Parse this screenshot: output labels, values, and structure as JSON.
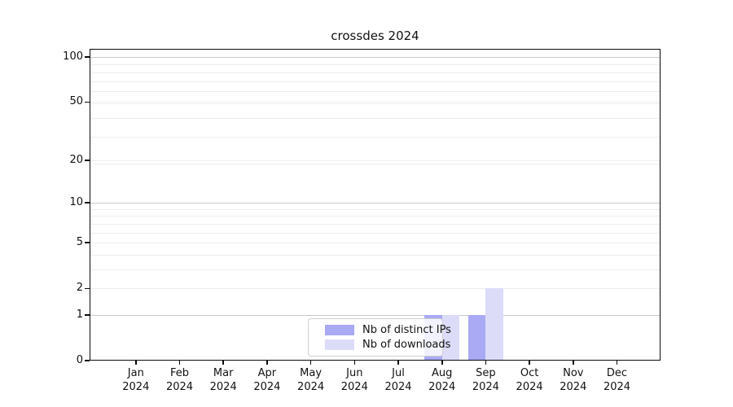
{
  "chart": {
    "title": "crossdes 2024",
    "year_label": "2024"
  },
  "chart_data": {
    "type": "bar",
    "title": "crossdes 2024",
    "categories": [
      "Jan 2024",
      "Feb 2024",
      "Mar 2024",
      "Apr 2024",
      "May 2024",
      "Jun 2024",
      "Jul 2024",
      "Aug 2024",
      "Sep 2024",
      "Oct 2024",
      "Nov 2024",
      "Dec 2024"
    ],
    "month_labels": [
      "Jan",
      "Feb",
      "Mar",
      "Apr",
      "May",
      "Jun",
      "Jul",
      "Aug",
      "Sep",
      "Oct",
      "Nov",
      "Dec"
    ],
    "series": [
      {
        "name": "Nb of distinct IPs",
        "color": "#a9a9f4",
        "values": [
          0,
          0,
          0,
          0,
          0,
          0,
          0,
          1,
          1,
          0,
          0,
          0
        ]
      },
      {
        "name": "Nb of downloads",
        "color": "#dcdcf8",
        "values": [
          0,
          0,
          0,
          0,
          0,
          0,
          0,
          1,
          2,
          0,
          0,
          0
        ]
      }
    ],
    "xlabel": "",
    "ylabel": "",
    "yscale": "log1p",
    "ylim": [
      0,
      113
    ],
    "y_major_ticks": [
      0,
      1,
      2,
      5,
      10,
      20,
      50,
      100
    ],
    "grid": true,
    "gridlines_dark": [
      1,
      10,
      100
    ],
    "gridlines_light": [
      2,
      3,
      4,
      5,
      6,
      7,
      8,
      9,
      19,
      20,
      29,
      39,
      49,
      50,
      59,
      69,
      79,
      89
    ],
    "legend_position": "lower center",
    "colors": {
      "grid_dark": "#c8c8c8",
      "grid_light": "#ededed",
      "axis": "#0a0a0a",
      "background": "#ffffff"
    }
  }
}
